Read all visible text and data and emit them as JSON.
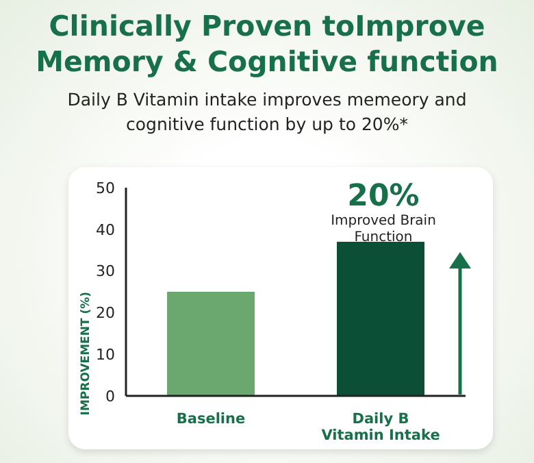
{
  "chart_data": {
    "type": "bar",
    "title": "Clinically Proven toImprove Memory & Cognitive function",
    "subtitle": "Daily B Vitamin intake improves memeory and cognitive function by up to 20%*",
    "ylabel": "IMPROVEMENT (%)",
    "categories": [
      "Baseline",
      "Daily B Vitamin Intake"
    ],
    "values": [
      25,
      37
    ],
    "colors": [
      "#6aa870",
      "#0b4f37"
    ],
    "ylim": [
      0,
      50
    ],
    "yticks": [
      0,
      10,
      20,
      30,
      40,
      50
    ],
    "annotations": [
      "20%",
      "Improved Brain Function"
    ],
    "grid": false,
    "legend": false
  }
}
